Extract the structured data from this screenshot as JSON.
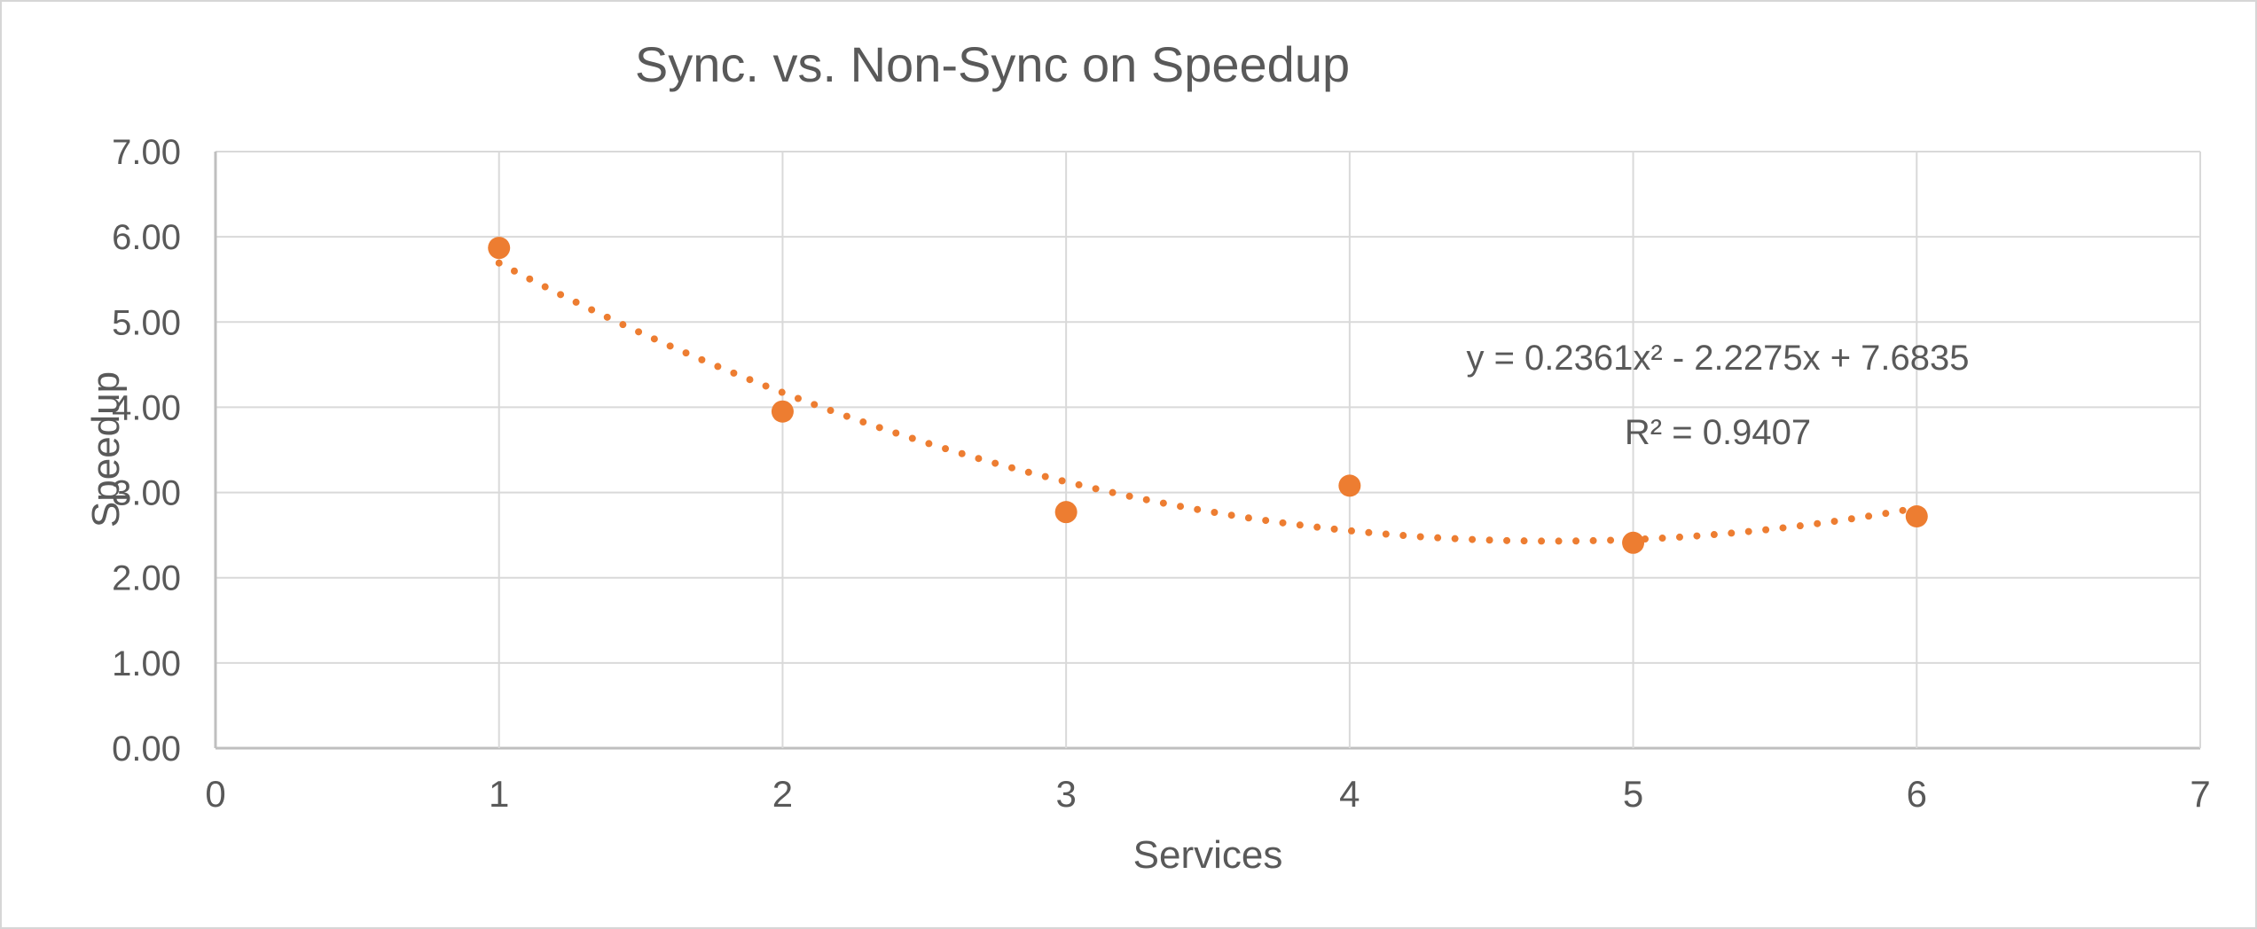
{
  "window": {
    "background_color": "#ffffff",
    "border_color": "#d6d6d6"
  },
  "chart_data": {
    "type": "scatter",
    "title": "Sync. vs. Non-Sync on Speedup",
    "xlabel": "Services",
    "ylabel": "Speedup",
    "x": [
      1,
      2,
      3,
      4,
      5,
      6
    ],
    "y": [
      5.87,
      3.95,
      2.77,
      3.08,
      2.41,
      2.72
    ],
    "series_name": "Speedup vs Services",
    "xlim": [
      0,
      7
    ],
    "ylim": [
      0,
      7
    ],
    "x_tick_labels": [
      "0",
      "1",
      "2",
      "3",
      "4",
      "5",
      "6",
      "7"
    ],
    "y_tick_labels": [
      "0.00",
      "1.00",
      "2.00",
      "3.00",
      "4.00",
      "5.00",
      "6.00",
      "7.00"
    ],
    "grid": true,
    "legend": "none",
    "marker_color": "#ED7D31",
    "gridline_color": "#D9D9D9",
    "axis_line_color": "#BFBFBF",
    "text_color": "#595959",
    "trendline": {
      "style": "dotted",
      "color": "#ED7D31",
      "type": "polynomial",
      "order": 2,
      "coefficients": [
        0.2361,
        -2.2275,
        7.6835
      ],
      "x_range": [
        1,
        6
      ],
      "equation_label": "y = 0.2361x² - 2.2275x + 7.6835",
      "r_squared_label": "R² = 0.9407"
    }
  }
}
